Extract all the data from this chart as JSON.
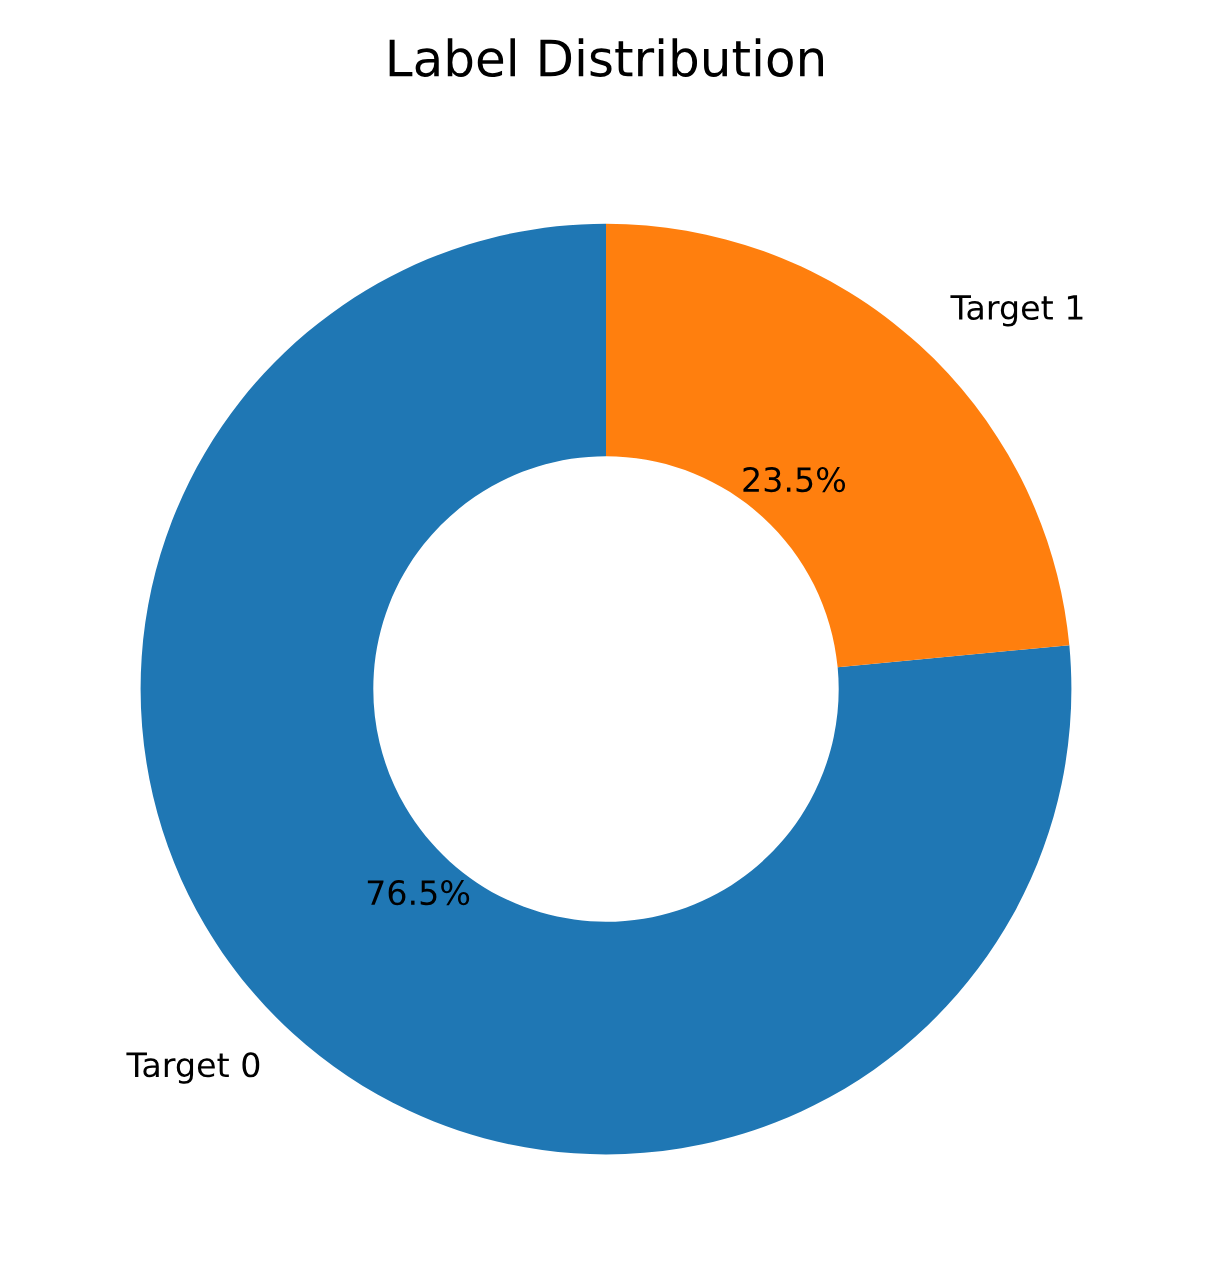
{
  "chart_data": {
    "type": "donut",
    "title": "Label Distribution",
    "categories": [
      "Target 0",
      "Target 1"
    ],
    "values": [
      76.5,
      23.5
    ],
    "value_labels": [
      "76.5%",
      "23.5%"
    ],
    "colors": [
      "#1f77b4",
      "#ff7f0e"
    ]
  }
}
